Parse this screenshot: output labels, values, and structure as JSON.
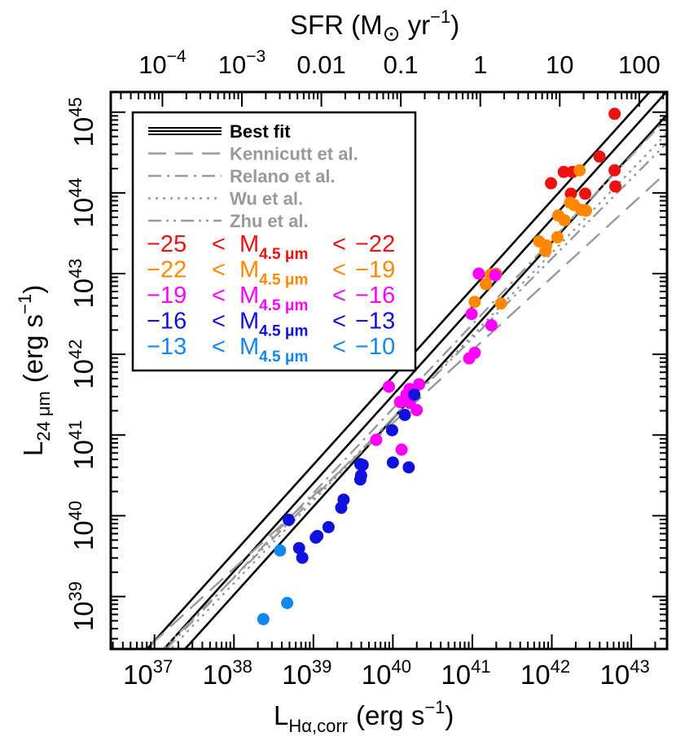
{
  "chart_data": {
    "type": "scatter",
    "title": "",
    "xlabel": "L",
    "xlabel_sub": "Hα,corr",
    "xlabel_unit": "(erg s",
    "xlabel_unit_exp": "−1",
    "xlabel_unit_close": ")",
    "ylabel": "L",
    "ylabel_sub": "24 μm",
    "ylabel_unit": "(erg s",
    "ylabel_unit_exp": "−1",
    "ylabel_unit_close": ")",
    "top_axis_label": "SFR (M",
    "top_axis_label_sun": "⊙",
    "top_axis_label_unit": " yr",
    "top_axis_label_unit_exp": "−1",
    "top_axis_label_close": ")",
    "x_scale": "log",
    "y_scale": "log",
    "xlim_log": [
      36.45,
      43.45
    ],
    "ylim_log": [
      38.35,
      45.25
    ],
    "x_ticks": [
      {
        "base": "10",
        "exp": "37",
        "value": 37
      },
      {
        "base": "10",
        "exp": "38",
        "value": 38
      },
      {
        "base": "10",
        "exp": "39",
        "value": 39
      },
      {
        "base": "10",
        "exp": "40",
        "value": 40
      },
      {
        "base": "10",
        "exp": "41",
        "value": 41
      },
      {
        "base": "10",
        "exp": "42",
        "value": 42
      },
      {
        "base": "10",
        "exp": "43",
        "value": 43
      }
    ],
    "y_ticks": [
      {
        "base": "10",
        "exp": "39",
        "value": 39
      },
      {
        "base": "10",
        "exp": "40",
        "value": 40
      },
      {
        "base": "10",
        "exp": "41",
        "value": 41
      },
      {
        "base": "10",
        "exp": "42",
        "value": 42
      },
      {
        "base": "10",
        "exp": "43",
        "value": 43
      },
      {
        "base": "10",
        "exp": "44",
        "value": 44
      },
      {
        "base": "10",
        "exp": "45",
        "value": 45
      }
    ],
    "top_ticks": [
      {
        "label": "10",
        "exp": "−4",
        "sfr": 0.0001
      },
      {
        "label": "10",
        "exp": "−3",
        "sfr": 0.001
      },
      {
        "label": "0.01",
        "exp": "",
        "sfr": 0.01
      },
      {
        "label": "0.1",
        "exp": "",
        "sfr": 0.1
      },
      {
        "label": "1",
        "exp": "",
        "sfr": 1
      },
      {
        "label": "10",
        "exp": "",
        "sfr": 10
      },
      {
        "label": "100",
        "exp": "",
        "sfr": 100
      }
    ],
    "sfr_conversion_log_offset": -41.1,
    "legend": {
      "placement": "top-left",
      "lines": [
        {
          "label": "Best fit",
          "style": "triple",
          "color": "#000000"
        },
        {
          "label": "Kennicutt et al.",
          "style": "long-dash",
          "color": "#999999"
        },
        {
          "label": "Relano et al.",
          "style": "dash-dot",
          "color": "#999999"
        },
        {
          "label": "Wu et al.",
          "style": "dotted",
          "color": "#999999"
        },
        {
          "label": "Zhu et al.",
          "style": "dash-dot-dot",
          "color": "#999999"
        }
      ],
      "groups": [
        {
          "low": "−25",
          "lt": "<",
          "m": "M",
          "msub": "4.5 μm",
          "high": "−22",
          "color": "#ee1111"
        },
        {
          "low": "−22",
          "lt": "<",
          "m": "M",
          "msub": "4.5 μm",
          "high": "−19",
          "color": "#ff8800"
        },
        {
          "low": "−19",
          "lt": "<",
          "m": "M",
          "msub": "4.5 μm",
          "high": "−16",
          "color": "#ff00ff"
        },
        {
          "low": "−16",
          "lt": "<",
          "m": "M",
          "msub": "4.5 μm",
          "high": "−13",
          "color": "#1111dd"
        },
        {
          "low": "−13",
          "lt": "<",
          "m": "M",
          "msub": "4.5 μm",
          "high": "−10",
          "color": "#1188ee"
        }
      ]
    },
    "lines": [
      {
        "name": "Best fit",
        "style": "triple",
        "color": "#000000",
        "x": [
          36.45,
          43.45
        ],
        "y": [
          37.85,
          45.49
        ]
      },
      {
        "name": "Best fit",
        "style": "triple",
        "color": "#000000",
        "x": [
          36.45,
          43.45
        ],
        "y": [
          37.62,
          45.26
        ]
      },
      {
        "name": "Best fit",
        "style": "triple",
        "color": "#000000",
        "x": [
          36.45,
          43.45
        ],
        "y": [
          37.33,
          44.97
        ]
      },
      {
        "name": "Kennicutt et al.",
        "style": "long-dash",
        "color": "#999999",
        "x": [
          36.45,
          43.45
        ],
        "y": [
          37.95,
          44.26
        ]
      },
      {
        "name": "Relano et al.",
        "style": "dash-dot",
        "color": "#999999",
        "x": [
          36.45,
          43.45
        ],
        "y": [
          37.62,
          44.93
        ]
      },
      {
        "name": "Wu et al.",
        "style": "dotted",
        "color": "#999999",
        "x": [
          36.45,
          43.45
        ],
        "y": [
          37.58,
          44.74
        ]
      },
      {
        "name": "Zhu et al.",
        "style": "dash-dot-dot",
        "color": "#999999",
        "x": [
          36.45,
          43.45
        ],
        "y": [
          37.7,
          44.62
        ]
      }
    ],
    "series": [
      {
        "name": "−25 < M4.5 μm < −22",
        "color": "#ee1111",
        "points": [
          [
            42.79,
            44.98
          ],
          [
            42.6,
            44.45
          ],
          [
            42.15,
            44.26
          ],
          [
            42.26,
            44.26
          ],
          [
            42.79,
            44.28
          ],
          [
            42.24,
            43.99
          ],
          [
            42.42,
            43.99
          ],
          [
            41.99,
            44.12
          ],
          [
            42.8,
            44.08
          ]
        ]
      },
      {
        "name": "−22 < M4.5 μm < −19",
        "color": "#ff8800",
        "points": [
          [
            42.35,
            44.28
          ],
          [
            42.23,
            43.88
          ],
          [
            42.28,
            43.85
          ],
          [
            42.37,
            43.79
          ],
          [
            42.43,
            43.78
          ],
          [
            42.08,
            43.72
          ],
          [
            42.16,
            43.66
          ],
          [
            41.84,
            43.4
          ],
          [
            41.93,
            43.35
          ],
          [
            42.07,
            43.45
          ],
          [
            41.92,
            43.28
          ],
          [
            41.23,
            42.99
          ],
          [
            41.3,
            43.0
          ],
          [
            41.17,
            42.87
          ],
          [
            41.03,
            42.65
          ],
          [
            41.36,
            42.63
          ]
        ]
      },
      {
        "name": "−19 < M4.5 μm < −16",
        "color": "#ff00ff",
        "points": [
          [
            41.29,
            42.98
          ],
          [
            41.08,
            43.0
          ],
          [
            40.99,
            42.5
          ],
          [
            41.24,
            42.36
          ],
          [
            40.96,
            41.95
          ],
          [
            41.03,
            42.02
          ],
          [
            40.33,
            41.63
          ],
          [
            40.21,
            41.57
          ],
          [
            40.17,
            41.5
          ],
          [
            39.95,
            41.6
          ],
          [
            40.09,
            41.41
          ],
          [
            40.21,
            41.4
          ],
          [
            40.3,
            41.31
          ],
          [
            39.79,
            40.94
          ],
          [
            40.11,
            40.82
          ]
        ]
      },
      {
        "name": "−16 < M4.5 μm < −13",
        "color": "#1111dd",
        "points": [
          [
            40.27,
            41.5
          ],
          [
            40.15,
            41.25
          ],
          [
            39.99,
            41.06
          ],
          [
            40.0,
            40.66
          ],
          [
            39.59,
            40.64
          ],
          [
            39.62,
            40.63
          ],
          [
            39.6,
            40.5
          ],
          [
            39.59,
            40.45
          ],
          [
            39.38,
            40.2
          ],
          [
            39.35,
            40.1
          ],
          [
            39.19,
            39.86
          ],
          [
            39.05,
            39.75
          ],
          [
            39.03,
            39.73
          ],
          [
            38.82,
            39.6
          ],
          [
            38.86,
            39.48
          ],
          [
            38.69,
            39.95
          ],
          [
            40.2,
            40.6
          ]
        ]
      },
      {
        "name": "−13 < M4.5 μm < −10",
        "color": "#1188ee",
        "points": [
          [
            38.58,
            39.57
          ],
          [
            38.67,
            38.92
          ],
          [
            38.37,
            38.72
          ]
        ]
      }
    ]
  }
}
